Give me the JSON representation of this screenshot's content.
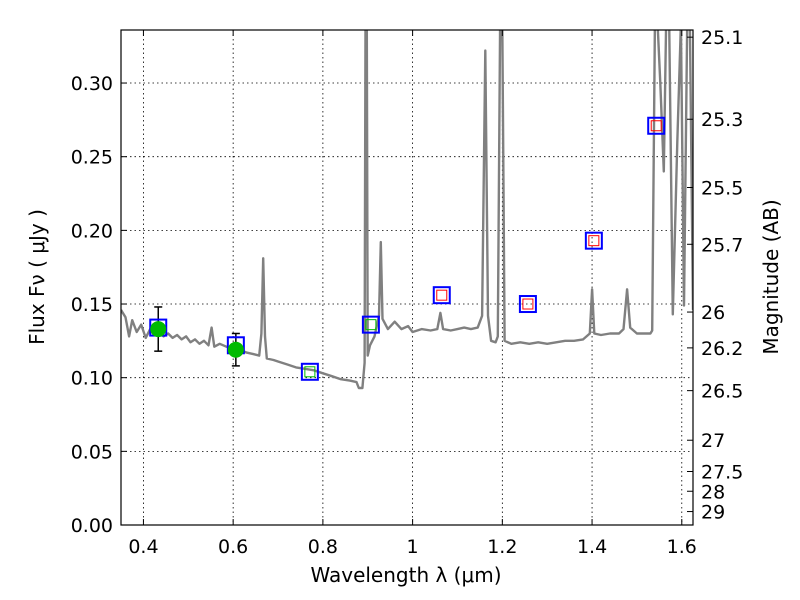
{
  "chart_data": {
    "type": "line",
    "xlabel": "Wavelength  λ (μm)",
    "ylabel": "Flux  Fν  ( μJy )",
    "y2label": "Magnitude (AB)",
    "xlim": [
      0.35,
      1.625
    ],
    "ylim": [
      0.0,
      0.336
    ],
    "grid": true,
    "x_ticks": [
      0.4,
      0.6,
      0.8,
      1.0,
      1.2,
      1.4,
      1.6
    ],
    "x_tick_labels": [
      "0.4",
      "0.6",
      "0.8",
      "1",
      "1.2",
      "1.4",
      "1.6"
    ],
    "y_ticks": [
      0.0,
      0.05,
      0.1,
      0.15,
      0.2,
      0.25,
      0.3
    ],
    "y_tick_labels": [
      "0.00",
      "0.05",
      "0.10",
      "0.15",
      "0.20",
      "0.25",
      "0.30"
    ],
    "mag_tick_labels": [
      "25.1",
      "25.3",
      "25.5",
      "25.7",
      "26",
      "26.2",
      "26.5",
      "27",
      "27.5",
      "28",
      "29"
    ],
    "colors": {
      "spectrum": "#808080",
      "observed": "#00bb00",
      "model_box": "#0000ff",
      "model_inner_red": "#ff0000",
      "model_inner_green": "#00bb00"
    },
    "spectrum": [
      [
        0.35,
        0.146
      ],
      [
        0.36,
        0.141
      ],
      [
        0.368,
        0.128
      ],
      [
        0.375,
        0.139
      ],
      [
        0.385,
        0.131
      ],
      [
        0.395,
        0.136
      ],
      [
        0.405,
        0.127
      ],
      [
        0.415,
        0.133
      ],
      [
        0.425,
        0.129
      ],
      [
        0.435,
        0.131
      ],
      [
        0.445,
        0.128
      ],
      [
        0.455,
        0.13
      ],
      [
        0.465,
        0.127
      ],
      [
        0.475,
        0.129
      ],
      [
        0.485,
        0.126
      ],
      [
        0.495,
        0.128
      ],
      [
        0.505,
        0.124
      ],
      [
        0.515,
        0.126
      ],
      [
        0.525,
        0.123
      ],
      [
        0.535,
        0.125
      ],
      [
        0.545,
        0.122
      ],
      [
        0.552,
        0.134
      ],
      [
        0.558,
        0.121
      ],
      [
        0.57,
        0.123
      ],
      [
        0.585,
        0.121
      ],
      [
        0.6,
        0.12
      ],
      [
        0.615,
        0.119
      ],
      [
        0.63,
        0.117
      ],
      [
        0.645,
        0.116
      ],
      [
        0.658,
        0.115
      ],
      [
        0.663,
        0.13
      ],
      [
        0.667,
        0.181
      ],
      [
        0.671,
        0.128
      ],
      [
        0.675,
        0.113
      ],
      [
        0.69,
        0.112
      ],
      [
        0.7,
        0.111
      ],
      [
        0.72,
        0.109
      ],
      [
        0.74,
        0.107
      ],
      [
        0.76,
        0.106
      ],
      [
        0.78,
        0.105
      ],
      [
        0.8,
        0.103
      ],
      [
        0.82,
        0.101
      ],
      [
        0.84,
        0.099
      ],
      [
        0.86,
        0.098
      ],
      [
        0.875,
        0.097
      ],
      [
        0.88,
        0.093
      ],
      [
        0.888,
        0.093
      ],
      [
        0.893,
        0.11
      ],
      [
        0.895,
        0.34
      ],
      [
        0.898,
        0.34
      ],
      [
        0.9,
        0.115
      ],
      [
        0.905,
        0.122
      ],
      [
        0.915,
        0.128
      ],
      [
        0.925,
        0.142
      ],
      [
        0.929,
        0.192
      ],
      [
        0.933,
        0.14
      ],
      [
        0.945,
        0.133
      ],
      [
        0.96,
        0.138
      ],
      [
        0.975,
        0.133
      ],
      [
        0.99,
        0.135
      ],
      [
        1.0,
        0.131
      ],
      [
        1.02,
        0.133
      ],
      [
        1.04,
        0.132
      ],
      [
        1.055,
        0.133
      ],
      [
        1.062,
        0.144
      ],
      [
        1.068,
        0.133
      ],
      [
        1.085,
        0.132
      ],
      [
        1.1,
        0.133
      ],
      [
        1.115,
        0.134
      ],
      [
        1.13,
        0.133
      ],
      [
        1.145,
        0.134
      ],
      [
        1.155,
        0.142
      ],
      [
        1.162,
        0.322
      ],
      [
        1.168,
        0.142
      ],
      [
        1.175,
        0.125
      ],
      [
        1.185,
        0.124
      ],
      [
        1.19,
        0.128
      ],
      [
        1.195,
        0.34
      ],
      [
        1.2,
        0.34
      ],
      [
        1.205,
        0.125
      ],
      [
        1.22,
        0.123
      ],
      [
        1.24,
        0.124
      ],
      [
        1.26,
        0.123
      ],
      [
        1.28,
        0.124
      ],
      [
        1.3,
        0.123
      ],
      [
        1.32,
        0.124
      ],
      [
        1.34,
        0.125
      ],
      [
        1.36,
        0.125
      ],
      [
        1.38,
        0.126
      ],
      [
        1.395,
        0.13
      ],
      [
        1.4,
        0.16
      ],
      [
        1.405,
        0.13
      ],
      [
        1.42,
        0.129
      ],
      [
        1.44,
        0.13
      ],
      [
        1.46,
        0.13
      ],
      [
        1.47,
        0.133
      ],
      [
        1.478,
        0.16
      ],
      [
        1.485,
        0.134
      ],
      [
        1.5,
        0.13
      ],
      [
        1.52,
        0.13
      ],
      [
        1.53,
        0.13
      ],
      [
        1.534,
        0.132
      ],
      [
        1.54,
        0.34
      ],
      [
        1.546,
        0.34
      ],
      [
        1.552,
        0.3
      ],
      [
        1.56,
        0.24
      ],
      [
        1.565,
        0.34
      ],
      [
        1.572,
        0.34
      ],
      [
        1.58,
        0.143
      ],
      [
        1.59,
        0.26
      ],
      [
        1.598,
        0.34
      ],
      [
        1.605,
        0.149
      ],
      [
        1.612,
        0.34
      ],
      [
        1.618,
        0.34
      ],
      [
        1.625,
        0.146
      ]
    ],
    "observed_points": [
      {
        "x": 0.433,
        "y": 0.133,
        "err": 0.015
      },
      {
        "x": 0.606,
        "y": 0.119,
        "err": 0.011
      }
    ],
    "model_points": [
      {
        "x": 0.433,
        "y": 0.134,
        "inner": "none"
      },
      {
        "x": 0.606,
        "y": 0.122,
        "inner": "none"
      },
      {
        "x": 0.771,
        "y": 0.104,
        "inner": "green"
      },
      {
        "x": 0.907,
        "y": 0.136,
        "inner": "green"
      },
      {
        "x": 1.065,
        "y": 0.156,
        "inner": "red"
      },
      {
        "x": 1.257,
        "y": 0.15,
        "inner": "red"
      },
      {
        "x": 1.404,
        "y": 0.193,
        "inner": "red"
      },
      {
        "x": 1.543,
        "y": 0.271,
        "inner": "red"
      }
    ]
  }
}
